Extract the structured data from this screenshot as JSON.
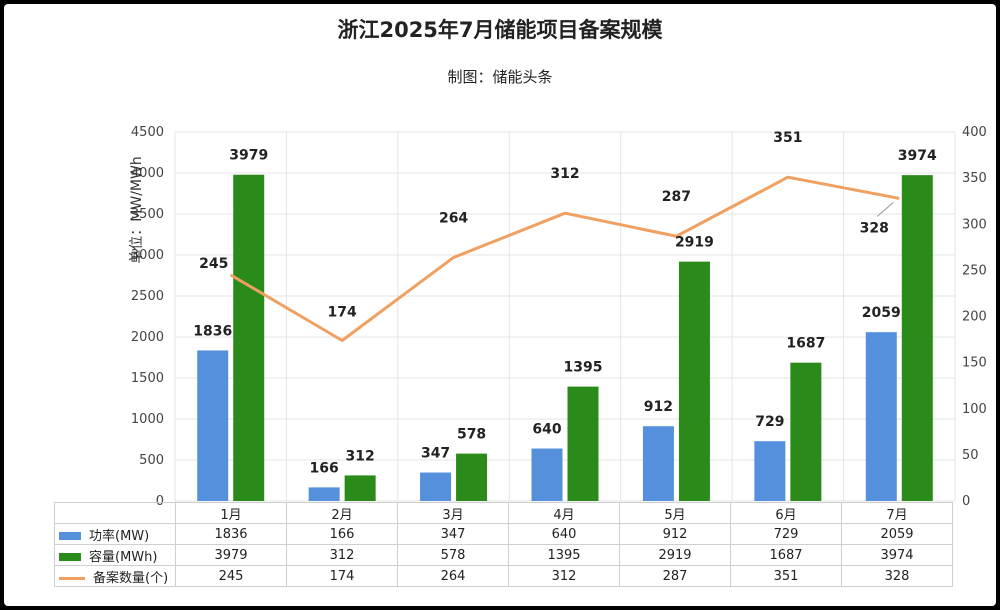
{
  "title": "浙江2025年7月储能项目备案规模",
  "subtitle": "制图：储能头条",
  "colors": {
    "power": "#5590DC",
    "capacity": "#2A8B1A",
    "count": "#F0A060",
    "grid": "#E4E4E4"
  },
  "chart_data": {
    "type": "bar",
    "title": "浙江2025年7月储能项目备案规模",
    "subtitle": "制图：储能头条",
    "categories": [
      "1月",
      "2月",
      "3月",
      "4月",
      "5月",
      "6月",
      "7月"
    ],
    "ylabel": "单位：MW/MWh",
    "ylim": [
      0,
      4500
    ],
    "yticks": [
      "0",
      "500",
      "1000",
      "1500",
      "2000",
      "2500",
      "3000",
      "3500",
      "4000",
      "4500"
    ],
    "y2lim": [
      0,
      400
    ],
    "y2ticks": [
      "0",
      "50",
      "100",
      "150",
      "200",
      "250",
      "300",
      "350",
      "400"
    ],
    "grid": true,
    "legend": "data table",
    "series": [
      {
        "name": "功率(MW)",
        "type": "bar",
        "axis": "left",
        "values": [
          1836,
          166,
          347,
          640,
          912,
          729,
          2059
        ]
      },
      {
        "name": "容量(MWh)",
        "type": "bar",
        "axis": "left",
        "values": [
          3979,
          312,
          578,
          1395,
          2919,
          1687,
          3974
        ]
      },
      {
        "name": "备案数量(个)",
        "type": "line",
        "axis": "right",
        "values": [
          245,
          174,
          264,
          312,
          287,
          351,
          328
        ]
      }
    ]
  }
}
